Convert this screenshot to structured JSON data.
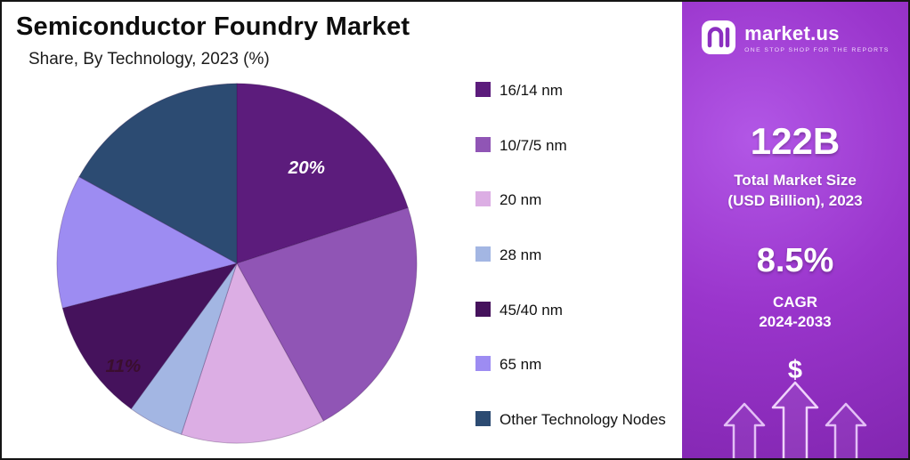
{
  "chart_data": {
    "type": "pie",
    "title": "Semiconductor Foundry Market",
    "subtitle": "Share, By Technology, 2023 (%)",
    "start_angle_deg": 0,
    "direction": "clockwise",
    "legend_position": "right",
    "slices": [
      {
        "label": "16/14 nm",
        "value": 20,
        "color": "#5C1C7C",
        "data_label": "20%",
        "label_color": "#ffffff",
        "label_r": 0.66
      },
      {
        "label": "10/7/5 nm",
        "value": 22,
        "color": "#9055B5",
        "data_label": ""
      },
      {
        "label": "20 nm",
        "value": 13,
        "color": "#DCAEE4",
        "data_label": ""
      },
      {
        "label": "28 nm",
        "value": 5,
        "color": "#A3B6E3",
        "data_label": ""
      },
      {
        "label": "45/40 nm",
        "value": 11,
        "color": "#45125C",
        "data_label": "11%",
        "label_color": "#3A0E2E",
        "label_r": 0.85,
        "label_angle": 228
      },
      {
        "label": "65 nm",
        "value": 12,
        "color": "#9D8CF2",
        "data_label": ""
      },
      {
        "label": "Other Technology Nodes",
        "value": 17,
        "color": "#2C4B72",
        "data_label": ""
      }
    ]
  },
  "sidebar": {
    "brand": {
      "name": "market.us",
      "tagline": "ONE STOP SHOP FOR THE REPORTS"
    },
    "market_size_value": "122B",
    "market_size_label": "Total Market Size\n(USD Billion), 2023",
    "cagr_value": "8.5%",
    "cagr_label": "CAGR",
    "cagr_period": "2024-2033",
    "dollar_symbol": "$"
  }
}
